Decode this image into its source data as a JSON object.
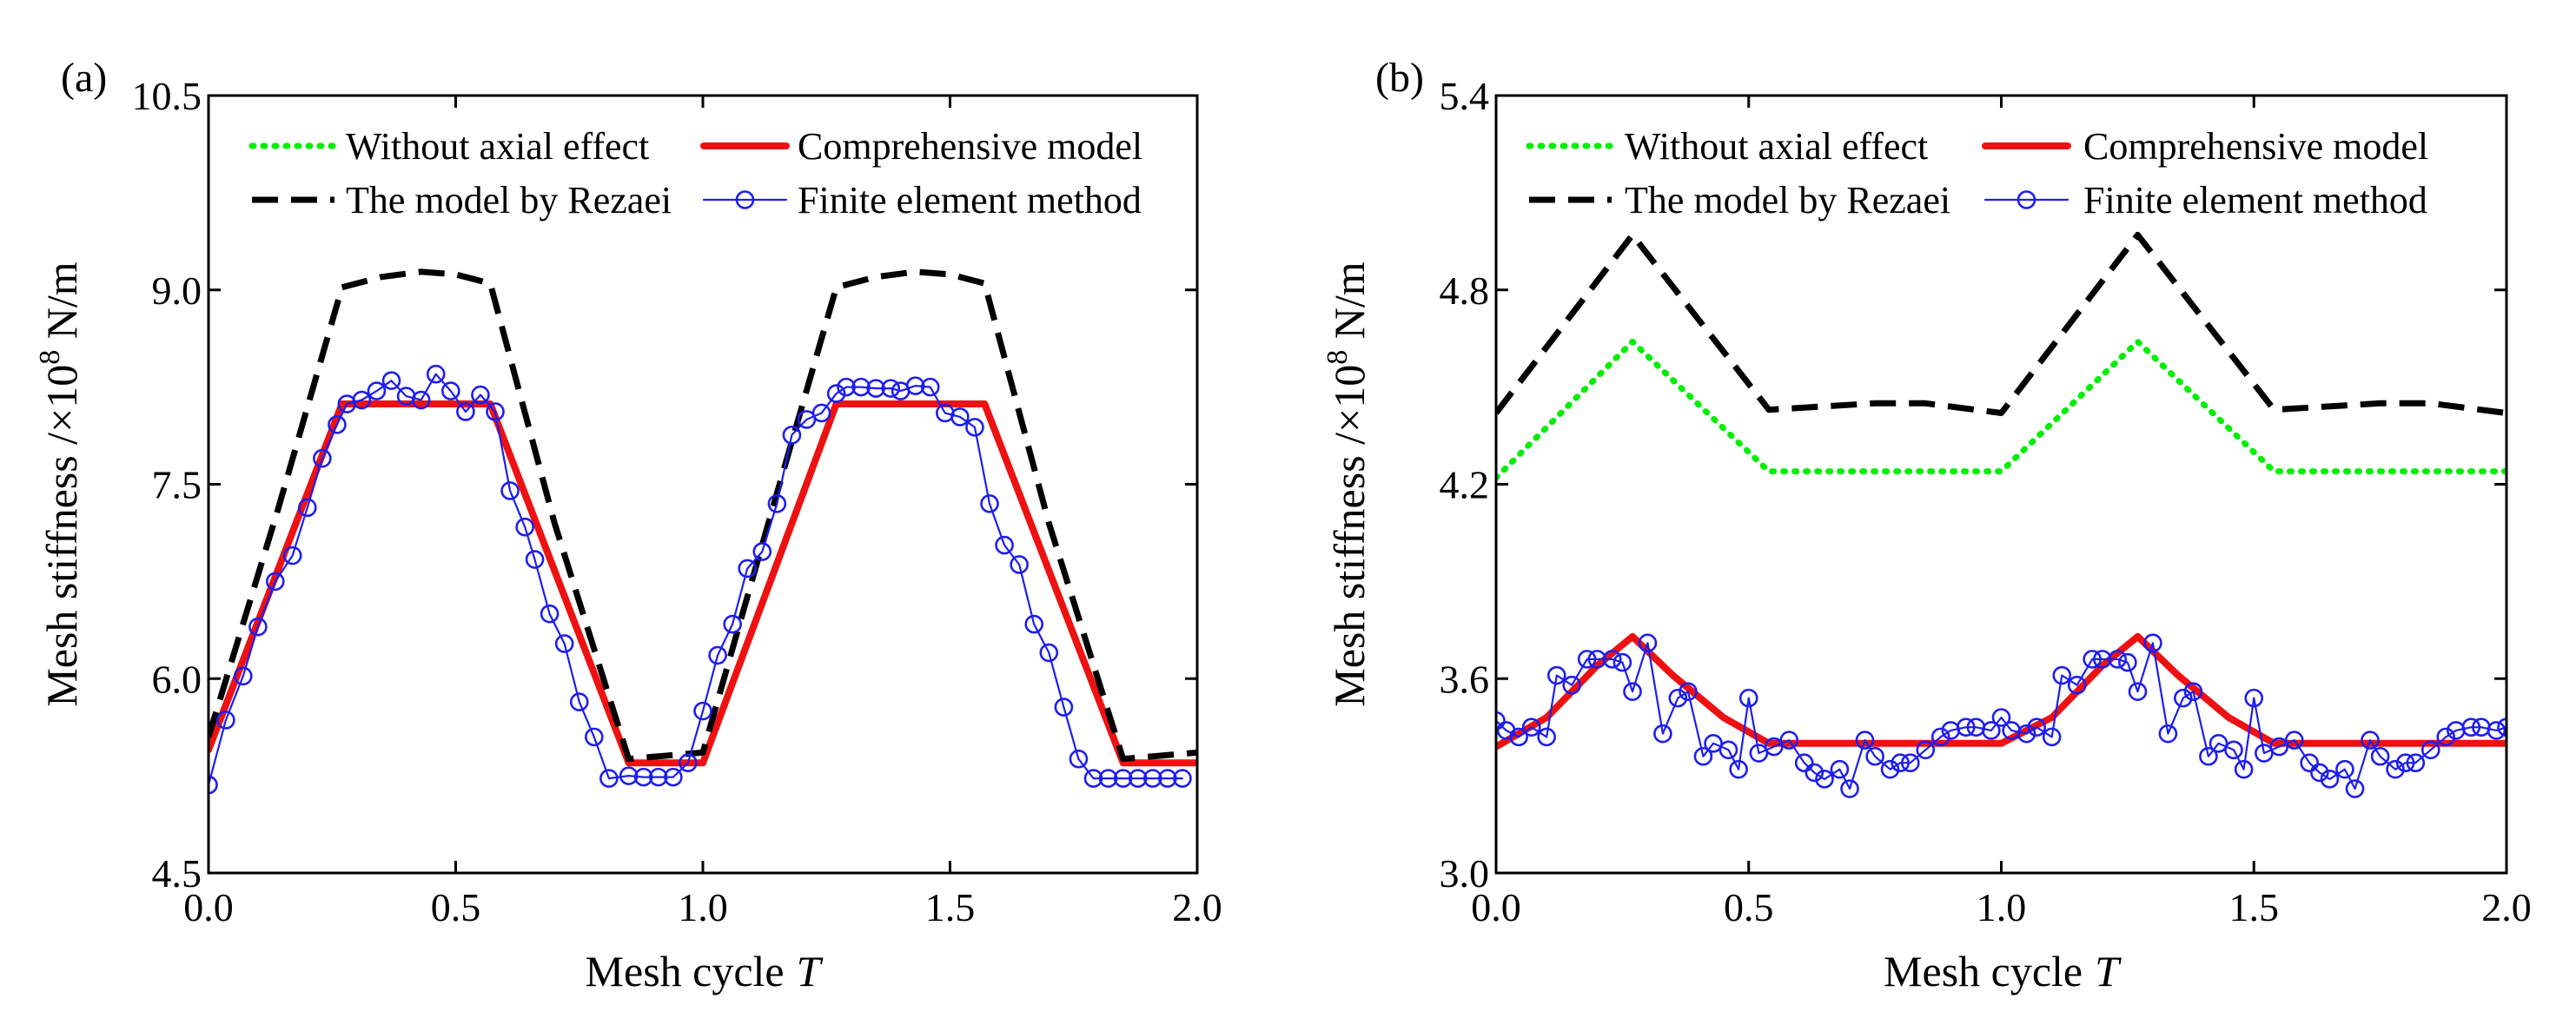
{
  "chart_data": [
    {
      "type": "line",
      "panel_label": "(a)",
      "xlabel": "Mesh cycle",
      "xlabel_var": "T",
      "ylabel_prefix": "Mesh stiffness /×10",
      "ylabel_exp": "8",
      "ylabel_unit": " N/m",
      "xlim": [
        0.0,
        2.0
      ],
      "ylim": [
        4.5,
        10.5
      ],
      "xticks": [
        "0.0",
        "0.5",
        "1.0",
        "1.5",
        "2.0"
      ],
      "yticks": [
        "4.5",
        "6.0",
        "7.5",
        "9.0",
        "10.5"
      ],
      "series": [
        {
          "name": "Without axial effect",
          "style": "dotted",
          "color": "#00ee00",
          "x": [
            0.0,
            0.27,
            0.57,
            0.85,
            1.0,
            1.27,
            1.57,
            1.85,
            2.0
          ],
          "y": [
            5.45,
            8.12,
            8.12,
            5.35,
            5.35,
            8.12,
            8.12,
            5.35,
            5.35
          ]
        },
        {
          "name": "Comprehensive model",
          "style": "solid",
          "color": "#ee1111",
          "x": [
            0.0,
            0.27,
            0.57,
            0.85,
            1.0,
            1.27,
            1.57,
            1.85,
            2.0
          ],
          "y": [
            5.45,
            8.12,
            8.12,
            5.35,
            5.35,
            8.12,
            8.12,
            5.35,
            5.35
          ]
        },
        {
          "name": "The model by Rezaei",
          "style": "dashed",
          "color": "#000000",
          "x": [
            0.0,
            0.14,
            0.27,
            0.35,
            0.43,
            0.5,
            0.57,
            0.7,
            0.85,
            1.0,
            1.14,
            1.27,
            1.35,
            1.43,
            1.5,
            1.57,
            1.7,
            1.85,
            2.0
          ],
          "y": [
            5.55,
            7.3,
            9.02,
            9.1,
            9.14,
            9.12,
            9.05,
            7.2,
            5.38,
            5.43,
            7.3,
            9.02,
            9.1,
            9.14,
            9.12,
            9.05,
            7.2,
            5.38,
            5.43
          ]
        },
        {
          "name": "Finite element method",
          "style": "line-markers",
          "color": "#1e1eee",
          "x": [
            0.0,
            0.035,
            0.07,
            0.1,
            0.135,
            0.17,
            0.2,
            0.23,
            0.26,
            0.28,
            0.31,
            0.34,
            0.37,
            0.4,
            0.43,
            0.46,
            0.49,
            0.52,
            0.55,
            0.58,
            0.61,
            0.64,
            0.66,
            0.69,
            0.72,
            0.75,
            0.78,
            0.81,
            0.85,
            0.88,
            0.91,
            0.94,
            0.97,
            1.0,
            1.03,
            1.06,
            1.09,
            1.12,
            1.15,
            1.18,
            1.21,
            1.24,
            1.27,
            1.29,
            1.32,
            1.35,
            1.38,
            1.4,
            1.43,
            1.46,
            1.49,
            1.52,
            1.55,
            1.58,
            1.61,
            1.64,
            1.67,
            1.7,
            1.73,
            1.76,
            1.79,
            1.82,
            1.85,
            1.88,
            1.91,
            1.94,
            1.97
          ],
          "y": [
            5.18,
            5.68,
            6.02,
            6.4,
            6.75,
            6.95,
            7.32,
            7.7,
            7.96,
            8.12,
            8.15,
            8.22,
            8.3,
            8.18,
            8.15,
            8.35,
            8.22,
            8.06,
            8.19,
            8.06,
            7.45,
            7.17,
            6.92,
            6.5,
            6.27,
            5.82,
            5.55,
            5.23,
            5.25,
            5.24,
            5.24,
            5.24,
            5.35,
            5.75,
            6.18,
            6.42,
            6.85,
            6.98,
            7.35,
            7.88,
            8.0,
            8.05,
            8.2,
            8.25,
            8.25,
            8.24,
            8.24,
            8.22,
            8.26,
            8.25,
            8.05,
            8.02,
            7.94,
            7.35,
            7.03,
            6.88,
            6.42,
            6.2,
            5.78,
            5.38,
            5.23,
            5.23,
            5.23,
            5.23,
            5.23,
            5.23,
            5.23
          ]
        }
      ]
    },
    {
      "type": "line",
      "panel_label": "(b)",
      "xlabel": "Mesh cycle",
      "xlabel_var": "T",
      "ylabel_prefix": "Mesh stiffness /×10",
      "ylabel_exp": "8",
      "ylabel_unit": " N/m",
      "xlim": [
        0.0,
        2.0
      ],
      "ylim": [
        3.0,
        5.4
      ],
      "xticks": [
        "0.0",
        "0.5",
        "1.0",
        "1.5",
        "2.0"
      ],
      "yticks": [
        "3.0",
        "3.6",
        "4.2",
        "4.8",
        "5.4"
      ],
      "series": [
        {
          "name": "Without axial effect",
          "style": "dotted",
          "color": "#00ee00",
          "x": [
            0.0,
            0.27,
            0.54,
            1.0,
            1.27,
            1.54,
            2.0
          ],
          "y": [
            4.22,
            4.64,
            4.24,
            4.24,
            4.64,
            4.24,
            4.24
          ]
        },
        {
          "name": "Comprehensive model",
          "style": "solid",
          "color": "#ee1111",
          "x": [
            0.0,
            0.1,
            0.2,
            0.27,
            0.35,
            0.45,
            0.54,
            0.7,
            0.85,
            1.0,
            1.1,
            1.2,
            1.27,
            1.35,
            1.45,
            1.54,
            1.7,
            1.85,
            2.0
          ],
          "y": [
            3.39,
            3.48,
            3.64,
            3.73,
            3.61,
            3.48,
            3.4,
            3.4,
            3.4,
            3.4,
            3.48,
            3.64,
            3.73,
            3.61,
            3.48,
            3.4,
            3.4,
            3.4,
            3.4
          ]
        },
        {
          "name": "The model by Rezaei",
          "style": "dashed",
          "color": "#000000",
          "x": [
            0.0,
            0.27,
            0.54,
            0.75,
            0.85,
            1.0,
            1.27,
            1.54,
            1.75,
            1.85,
            2.0
          ],
          "y": [
            4.42,
            4.97,
            4.43,
            4.45,
            4.45,
            4.42,
            4.97,
            4.43,
            4.45,
            4.45,
            4.42
          ]
        },
        {
          "name": "Finite element method",
          "style": "line-markers",
          "color": "#1e1eee",
          "x": [
            0.0,
            0.02,
            0.045,
            0.07,
            0.1,
            0.12,
            0.15,
            0.18,
            0.2,
            0.23,
            0.25,
            0.27,
            0.3,
            0.33,
            0.36,
            0.38,
            0.41,
            0.43,
            0.46,
            0.48,
            0.5,
            0.52,
            0.55,
            0.58,
            0.61,
            0.63,
            0.65,
            0.68,
            0.7,
            0.73,
            0.75,
            0.78,
            0.8,
            0.82,
            0.85,
            0.88,
            0.9,
            0.93,
            0.95,
            0.98,
            1.0,
            1.02,
            1.05,
            1.07,
            1.1,
            1.12,
            1.15,
            1.18,
            1.2,
            1.23,
            1.25,
            1.27,
            1.3,
            1.33,
            1.36,
            1.38,
            1.41,
            1.43,
            1.46,
            1.48,
            1.5,
            1.52,
            1.55,
            1.58,
            1.61,
            1.63,
            1.65,
            1.68,
            1.7,
            1.73,
            1.75,
            1.78,
            1.8,
            1.82,
            1.85,
            1.88,
            1.9,
            1.93,
            1.95,
            1.98,
            2.0
          ],
          "y": [
            3.47,
            3.44,
            3.42,
            3.45,
            3.42,
            3.61,
            3.58,
            3.66,
            3.66,
            3.66,
            3.65,
            3.56,
            3.71,
            3.43,
            3.54,
            3.56,
            3.36,
            3.4,
            3.38,
            3.32,
            3.54,
            3.37,
            3.39,
            3.41,
            3.34,
            3.31,
            3.29,
            3.32,
            3.26,
            3.41,
            3.36,
            3.32,
            3.34,
            3.34,
            3.38,
            3.42,
            3.44,
            3.45,
            3.45,
            3.44,
            3.48,
            3.44,
            3.43,
            3.45,
            3.42,
            3.61,
            3.58,
            3.66,
            3.66,
            3.66,
            3.65,
            3.56,
            3.71,
            3.43,
            3.54,
            3.56,
            3.36,
            3.4,
            3.38,
            3.32,
            3.54,
            3.37,
            3.39,
            3.41,
            3.34,
            3.31,
            3.29,
            3.32,
            3.26,
            3.41,
            3.36,
            3.32,
            3.34,
            3.34,
            3.38,
            3.42,
            3.44,
            3.45,
            3.45,
            3.44,
            3.45
          ]
        }
      ]
    }
  ]
}
